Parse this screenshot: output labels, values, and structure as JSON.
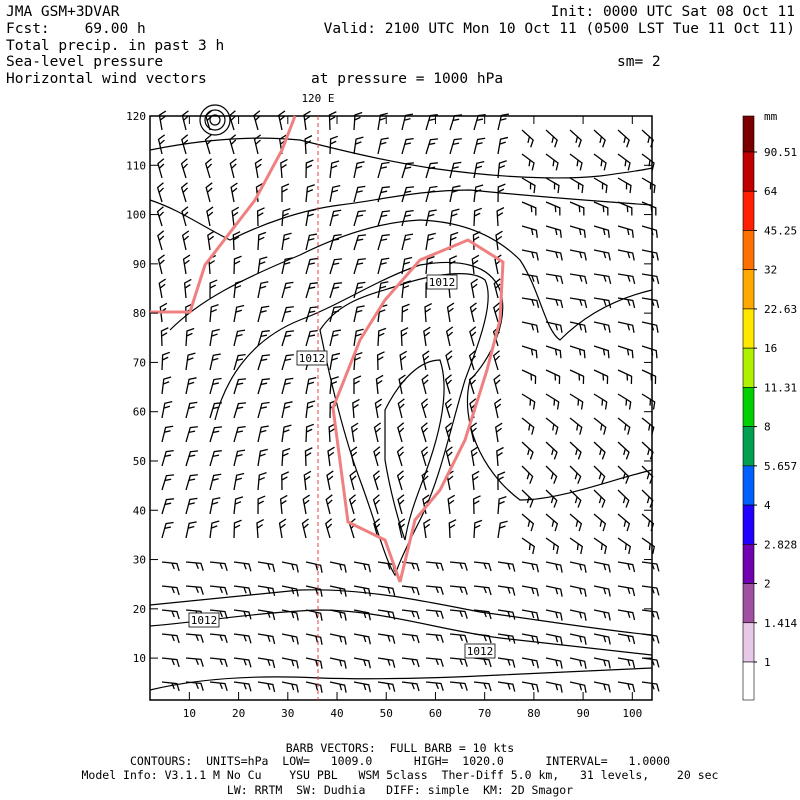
{
  "header": {
    "left": [
      "JMA GSM+3DVAR",
      "Fcst:    69.00 h",
      "Total precip. in past 3 h",
      "Sea-level pressure",
      "Horizontal wind vectors"
    ],
    "right": [
      "Init: 0000 UTC Sat 08 Oct 11",
      "Valid: 2100 UTC Mon 10 Oct 11 (0500 LST Tue 11 Oct 11)"
    ],
    "smoothing": "sm= 2",
    "pressure": "at pressure = 1000 hPa"
  },
  "plot": {
    "xlim": [
      2,
      104
    ],
    "ylim": [
      1.5,
      120
    ],
    "xticks": [
      10,
      20,
      30,
      40,
      50,
      60,
      70,
      80,
      90,
      100
    ],
    "yticks": [
      10,
      20,
      30,
      40,
      50,
      60,
      70,
      80,
      90,
      100,
      110,
      120
    ],
    "meridian": "120 E",
    "contour_labels": [
      "1012",
      "1012",
      "1012",
      "1012"
    ]
  },
  "colorbar": {
    "unit": "mm",
    "levels": [
      90.51,
      64,
      45.25,
      32,
      22.63,
      16,
      11.31,
      8,
      5.657,
      4,
      2.828,
      2,
      1.414,
      1
    ],
    "colors": [
      "#7a0000",
      "#c00000",
      "#ff2000",
      "#ff7000",
      "#ffa800",
      "#ffe800",
      "#b0f000",
      "#00d000",
      "#00a050",
      "#0060ff",
      "#2000ff",
      "#7000b0",
      "#a050a0",
      "#e8c8e8",
      "#ffffff"
    ]
  },
  "footer": [
    "BARB VECTORS:  FULL BARB = 10 kts",
    "CONTOURS:  UNITS=hPa  LOW=   1009.0      HIGH=  1020.0      INTERVAL=   1.0000",
    "Model Info: V3.1.1 M No Cu    YSU PBL   WSM 5class  Ther-Diff 5.0 km,   31 levels,    20 sec",
    "LW: RRTM  SW: Dudhia   DIFF: simple  KM: 2D Smagor"
  ]
}
